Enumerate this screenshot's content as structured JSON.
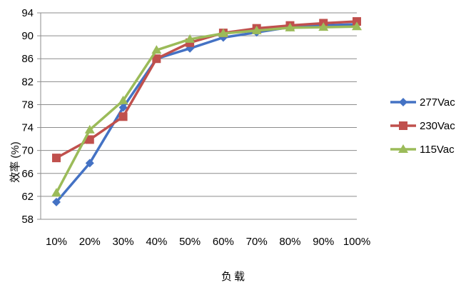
{
  "chart_data": {
    "type": "line",
    "categories": [
      "10%",
      "20%",
      "30%",
      "40%",
      "50%",
      "60%",
      "70%",
      "80%",
      "90%",
      "100%"
    ],
    "series": [
      {
        "name": "277Vac",
        "color": "#4472C4",
        "marker": "diamond",
        "values": [
          61.0,
          67.8,
          77.5,
          86.0,
          87.8,
          89.7,
          90.6,
          91.5,
          91.8,
          92.0
        ]
      },
      {
        "name": "230Vac",
        "color": "#C0504D",
        "marker": "square",
        "values": [
          68.7,
          71.9,
          75.9,
          86.0,
          88.8,
          90.5,
          91.3,
          91.8,
          92.2,
          92.5
        ]
      },
      {
        "name": "115Vac",
        "color": "#9BBB59",
        "marker": "triangle",
        "values": [
          62.6,
          73.6,
          78.7,
          87.5,
          89.4,
          90.4,
          90.9,
          91.4,
          91.5,
          91.6
        ]
      }
    ],
    "xlabel": "负载",
    "ylabel": "效率 (%)",
    "ylim": [
      58,
      94
    ],
    "yticks": [
      58,
      62,
      66,
      70,
      74,
      78,
      82,
      86,
      90,
      94
    ],
    "grid": true,
    "legend": "right"
  }
}
